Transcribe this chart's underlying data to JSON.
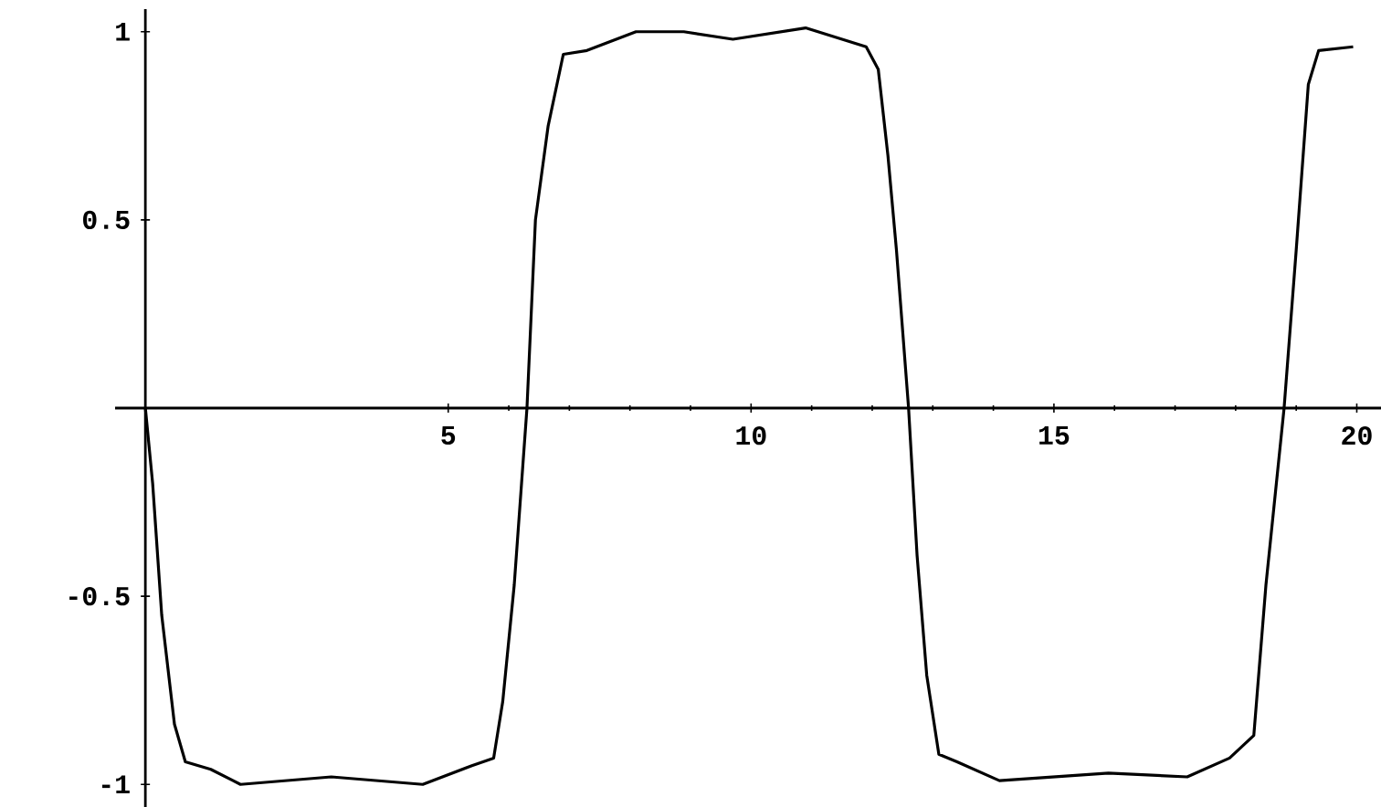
{
  "chart_data": {
    "type": "line",
    "color": "#000000",
    "x": [
      0,
      0.12,
      0.27,
      0.48,
      0.66,
      1.08,
      1.57,
      3.07,
      4.58,
      5.39,
      5.75,
      5.9,
      6.09,
      6.3,
      6.44,
      6.65,
      6.9,
      7.29,
      8.1,
      8.89,
      9.7,
      10.9,
      11.9,
      12.1,
      12.26,
      12.4,
      12.6,
      12.74,
      12.9,
      13.1,
      13.4,
      14.1,
      15.9,
      17.2,
      17.9,
      18.3,
      18.5,
      18.8,
      19.0,
      19.2,
      19.37,
      19.94
    ],
    "values": [
      0,
      -0.2,
      -0.55,
      -0.84,
      -0.94,
      -0.96,
      -1.0,
      -0.98,
      -1.0,
      -0.95,
      -0.93,
      -0.78,
      -0.47,
      0,
      0.5,
      0.75,
      0.94,
      0.95,
      1.0,
      1.0,
      0.98,
      1.01,
      0.96,
      0.9,
      0.67,
      0.42,
      0,
      -0.39,
      -0.71,
      -0.92,
      -0.94,
      -0.99,
      -0.97,
      -0.98,
      -0.93,
      -0.87,
      -0.47,
      0,
      0.42,
      0.86,
      0.95,
      0.96
    ],
    "xlim": [
      -0.5,
      20.4
    ],
    "ylim": [
      -1.06,
      1.06
    ],
    "xticks": [
      5,
      10,
      15,
      20
    ],
    "yticks": [
      -1,
      -0.5,
      0.5,
      1
    ]
  }
}
